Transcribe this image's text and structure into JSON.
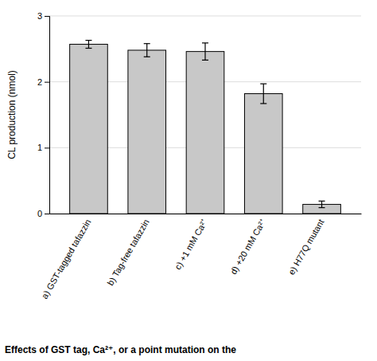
{
  "chart_data": {
    "type": "bar",
    "categories": [
      "a) GST-tagged tafazzin",
      "b) Tag-free tafazzin",
      "c) +1 mM Ca²⁺",
      "d) +20 mM Ca²⁺",
      "e) H77Q mutant"
    ],
    "values": [
      2.57,
      2.48,
      2.46,
      1.82,
      0.14
    ],
    "errors": [
      0.06,
      0.1,
      0.13,
      0.15,
      0.05
    ],
    "color": "#c8c8c8",
    "ylabel": "CL production (nmol)",
    "ylim": [
      0,
      3
    ],
    "yticks": [
      0,
      1,
      2,
      3
    ],
    "grid": true,
    "annotations": [
      "Effects of GST tag, Ca²⁺, or a point mutation on the"
    ]
  }
}
